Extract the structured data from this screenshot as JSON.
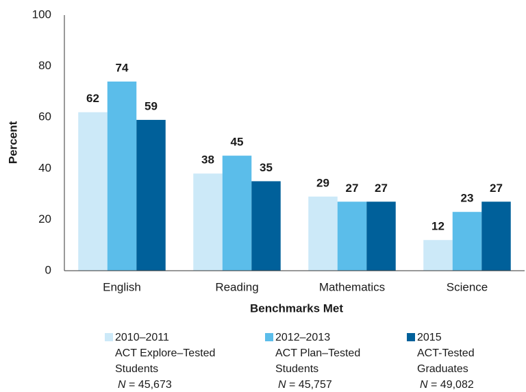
{
  "chart_data": {
    "type": "bar",
    "xlabel": "Benchmarks Met",
    "ylabel": "Percent",
    "categories": [
      "English",
      "Reading",
      "Mathematics",
      "Science"
    ],
    "series": [
      {
        "name": "2010–2011",
        "description": [
          "ACT Explore–Tested",
          "Students"
        ],
        "n_symbol": "N",
        "n_value": "= 45,673",
        "color": "#cce9f8",
        "values": [
          62,
          38,
          29,
          12
        ]
      },
      {
        "name": "2012–2013",
        "description": [
          "ACT Plan–Tested",
          "Students"
        ],
        "n_symbol": "N",
        "n_value": "= 45,757",
        "color": "#5bbdea",
        "values": [
          74,
          45,
          27,
          23
        ]
      },
      {
        "name": "2015",
        "description": [
          "ACT-Tested",
          "Graduates"
        ],
        "n_symbol": "N",
        "n_value": "= 49,082",
        "color": "#00609a",
        "values": [
          59,
          35,
          27,
          27
        ]
      }
    ],
    "ylim": [
      0,
      100
    ],
    "yticks": [
      0,
      20,
      40,
      60,
      80,
      100
    ],
    "grid": false
  }
}
